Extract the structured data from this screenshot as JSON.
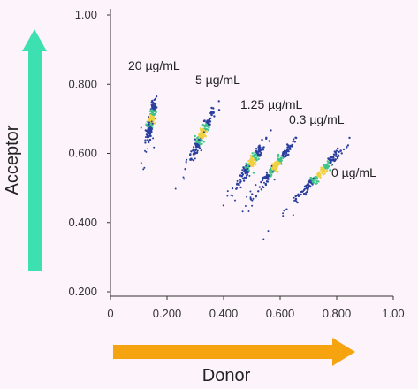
{
  "chart_data": {
    "type": "scatter",
    "title": "",
    "xlabel": "Donor",
    "ylabel": "Acceptor",
    "xlim": [
      0,
      1.0
    ],
    "ylim": [
      0.2,
      1.0
    ],
    "x_ticks": [
      "0",
      "0.200",
      "0.400",
      "0.600",
      "0.800",
      "1.00"
    ],
    "y_ticks": [
      "0.200",
      "0.400",
      "0.600",
      "0.800",
      "1.00"
    ],
    "grid": false,
    "colors": {
      "points": "#2a3f9e",
      "density_mid": "#3fc48a",
      "density_high": "#f0d040",
      "acceptor_arrow": "#3de0b0",
      "donor_arrow": "#f5a30f",
      "axis": "#333333"
    },
    "series": [
      {
        "name": "20 µg/mL",
        "center": [
          0.145,
          0.7
        ],
        "slope": 4.5,
        "spread": 0.07
      },
      {
        "name": "5 µg/mL",
        "center": [
          0.325,
          0.655
        ],
        "slope": 1.7,
        "spread": 0.09
      },
      {
        "name": "1.25 µg/mL",
        "center": [
          0.5,
          0.575
        ],
        "slope": 1.25,
        "spread": 0.08
      },
      {
        "name": "0.3 µg/mL",
        "center": [
          0.585,
          0.565
        ],
        "slope": 1.1,
        "spread": 0.1
      },
      {
        "name": "0 µg/mL",
        "center": [
          0.745,
          0.545
        ],
        "slope": 0.9,
        "spread": 0.12
      }
    ],
    "annotations": [
      "20 µg/mL",
      "5 µg/mL",
      "1.25 µg/mL",
      "0.3 µg/mL",
      "0 µg/mL"
    ]
  }
}
